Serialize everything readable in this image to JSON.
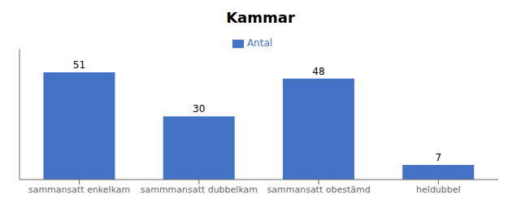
{
  "chart_data": {
    "type": "bar",
    "title": "Kammar",
    "categories": [
      "sammansatt enkelkam",
      "sammmansatt dubbelkam",
      "sammansatt obestämd",
      "heldubbel"
    ],
    "series": [
      {
        "name": "Antal",
        "color": "#4472C4",
        "values": [
          51,
          30,
          48,
          7
        ]
      }
    ],
    "ylim": [
      0,
      62
    ],
    "legend": "top",
    "data_labels": true,
    "tick_labels": "x",
    "grid": false
  }
}
